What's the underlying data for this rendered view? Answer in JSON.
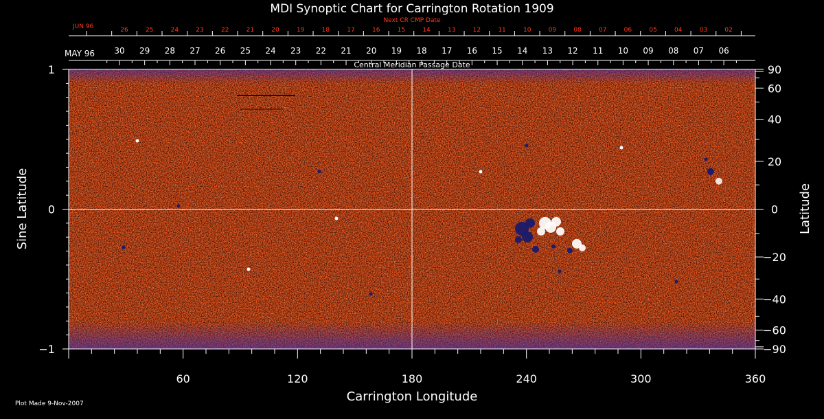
{
  "chart_data": {
    "type": "heatmap",
    "title": "MDI Synoptic Chart for Carrington Rotation 1909",
    "xlabel": "Carrington Longitude",
    "ylabel_left": "Sine Latitude",
    "ylabel_right": "Latitude",
    "xlim": [
      0,
      360
    ],
    "ylim_sine": [
      -1,
      1
    ],
    "x_ticks": [
      "60",
      "120",
      "180",
      "240",
      "300",
      "360"
    ],
    "y_left_ticks": [
      "1",
      "0",
      "−1"
    ],
    "y_right_ticks": [
      "90",
      "60",
      "40",
      "20",
      "0",
      "−20",
      "−40",
      "−60",
      "−90"
    ],
    "y_right_tick_values": [
      90,
      60,
      40,
      20,
      0,
      -20,
      -40,
      -60,
      -90
    ],
    "date_axis_title": "Central Meridian Passage Date",
    "date_axis_month": "MAY 96",
    "date_axis_labels": [
      "30",
      "29",
      "28",
      "27",
      "26",
      "25",
      "24",
      "23",
      "22",
      "21",
      "20",
      "19",
      "18",
      "17",
      "16",
      "15",
      "14",
      "13",
      "12",
      "11",
      "10",
      "09",
      "08",
      "07",
      "06"
    ],
    "next_cr_title": "Next CR CMP Date",
    "next_cr_month": "JUN 96",
    "next_cr_labels": [
      "26",
      "25",
      "24",
      "23",
      "22",
      "21",
      "20",
      "19",
      "18",
      "17",
      "16",
      "15",
      "14",
      "13",
      "12",
      "11",
      "10",
      "09",
      "08",
      "07",
      "06",
      "05",
      "04",
      "03",
      "02"
    ],
    "reference_lines": {
      "longitude": 180,
      "sine_latitude": 0
    },
    "features": [
      {
        "name": "bipolar active region",
        "longitude": 252,
        "sine_latitude": -0.1
      },
      {
        "name": "small region",
        "longitude": 338,
        "sine_latitude": 0.22
      }
    ],
    "colors": {
      "background": "#000000",
      "field": "#e8501a",
      "positive": "#ffffff",
      "negative": "#1a1a6e",
      "next_cr": "#ff3a1a"
    }
  },
  "footer": {
    "plot_made": "Plot Made  9-Nov-2007"
  }
}
